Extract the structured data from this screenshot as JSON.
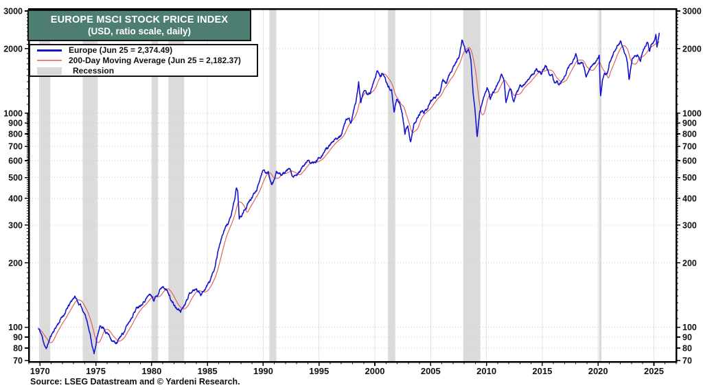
{
  "title": {
    "line1": "EUROPE MSCI STOCK PRICE INDEX",
    "line2": "(USD, ratio scale, daily)"
  },
  "legend": {
    "items": [
      {
        "label": "Europe (Jun 25 = 2,374.49)",
        "swatch": "line",
        "color": "#1414cc",
        "weight": 3
      },
      {
        "label": "200-Day Moving Average (Jun 25 = 2,182.37)",
        "swatch": "line",
        "color": "#ef8484",
        "weight": 2
      },
      {
        "label": "Recession",
        "swatch": "box",
        "color": "#d9d9d9",
        "weight": 0
      }
    ]
  },
  "source_note": "Source: LSEG Datastream and © Yardeni Research.",
  "colors": {
    "europe_line": "#1414cc",
    "ma_line": "#dd5555",
    "recession_band": "#dbdbdb",
    "frame": "#000000",
    "gridline_h": "#c9c9c9",
    "gridline_v": "#e3e3e3",
    "title_bg": "#4e7e72"
  },
  "chart_data": {
    "type": "line",
    "title": "EUROPE MSCI STOCK PRICE INDEX",
    "subtitle": "(USD, ratio scale, daily)",
    "x_axis": {
      "range": [
        1969,
        2027
      ],
      "major_ticks": [
        1970,
        1975,
        1980,
        1985,
        1990,
        1995,
        2000,
        2005,
        2010,
        2015,
        2020,
        2025
      ],
      "minor_tick_step_years": 1
    },
    "y_axis": {
      "scale": "log",
      "range": [
        69,
        3067
      ],
      "labeled_ticks": [
        3000,
        2000,
        1000,
        900,
        800,
        700,
        600,
        500,
        400,
        300,
        200,
        100,
        90,
        80,
        70
      ],
      "gridline_values": [
        2000,
        1000,
        900,
        800,
        700,
        600,
        500,
        400,
        300,
        200,
        100,
        90,
        80
      ]
    },
    "legend_position": "top-left",
    "recessions": [
      [
        1969.92,
        1970.92
      ],
      [
        1973.83,
        1975.17
      ],
      [
        1980.0,
        1980.58
      ],
      [
        1981.5,
        1982.92
      ],
      [
        1990.55,
        1991.17
      ],
      [
        2001.17,
        2001.83
      ],
      [
        2007.92,
        2009.45
      ],
      [
        2020.08,
        2020.3
      ]
    ],
    "series": [
      {
        "name": "Europe",
        "color": "#1414cc",
        "value_jun_25": 2374.49,
        "points": [
          [
            1969.85,
            99
          ],
          [
            1970.1,
            93
          ],
          [
            1970.35,
            85
          ],
          [
            1970.55,
            79
          ],
          [
            1970.8,
            86
          ],
          [
            1971.05,
            93
          ],
          [
            1971.35,
            99
          ],
          [
            1971.65,
            105
          ],
          [
            1972.0,
            112
          ],
          [
            1972.4,
            121
          ],
          [
            1972.8,
            131
          ],
          [
            1973.1,
            140
          ],
          [
            1973.4,
            131
          ],
          [
            1973.7,
            124
          ],
          [
            1974.0,
            117
          ],
          [
            1974.3,
            104
          ],
          [
            1974.6,
            87
          ],
          [
            1974.85,
            75
          ],
          [
            1975.1,
            89
          ],
          [
            1975.35,
            99
          ],
          [
            1975.6,
            101
          ],
          [
            1975.9,
            96
          ],
          [
            1976.2,
            92
          ],
          [
            1976.6,
            86
          ],
          [
            1976.9,
            84
          ],
          [
            1977.2,
            90
          ],
          [
            1977.6,
            97
          ],
          [
            1978.0,
            106
          ],
          [
            1978.4,
            118
          ],
          [
            1978.8,
            126
          ],
          [
            1979.2,
            132
          ],
          [
            1979.6,
            139
          ],
          [
            1979.9,
            143
          ],
          [
            1980.2,
            134
          ],
          [
            1980.5,
            143
          ],
          [
            1980.8,
            153
          ],
          [
            1981.05,
            159
          ],
          [
            1981.4,
            148
          ],
          [
            1981.7,
            137
          ],
          [
            1982.0,
            127
          ],
          [
            1982.3,
            121
          ],
          [
            1982.6,
            119
          ],
          [
            1982.9,
            127
          ],
          [
            1983.2,
            139
          ],
          [
            1983.6,
            149
          ],
          [
            1984.0,
            151
          ],
          [
            1984.4,
            144
          ],
          [
            1984.8,
            153
          ],
          [
            1985.2,
            163
          ],
          [
            1985.6,
            186
          ],
          [
            1986.0,
            236
          ],
          [
            1986.4,
            276
          ],
          [
            1986.8,
            302
          ],
          [
            1987.2,
            342
          ],
          [
            1987.45,
            392
          ],
          [
            1987.6,
            448
          ],
          [
            1987.72,
            425
          ],
          [
            1987.85,
            320
          ],
          [
            1988.1,
            336
          ],
          [
            1988.5,
            366
          ],
          [
            1989.0,
            402
          ],
          [
            1989.4,
            442
          ],
          [
            1989.7,
            502
          ],
          [
            1989.95,
            548
          ],
          [
            1990.2,
            522
          ],
          [
            1990.45,
            538
          ],
          [
            1990.75,
            464
          ],
          [
            1991.0,
            492
          ],
          [
            1991.2,
            526
          ],
          [
            1991.5,
            512
          ],
          [
            1991.8,
            522
          ],
          [
            1992.1,
            528
          ],
          [
            1992.4,
            541
          ],
          [
            1992.7,
            494
          ],
          [
            1993.0,
            506
          ],
          [
            1993.4,
            547
          ],
          [
            1993.8,
            582
          ],
          [
            1994.1,
            606
          ],
          [
            1994.4,
            579
          ],
          [
            1994.7,
            591
          ],
          [
            1995.0,
            621
          ],
          [
            1995.4,
            662
          ],
          [
            1995.8,
            692
          ],
          [
            1996.2,
            722
          ],
          [
            1996.6,
            752
          ],
          [
            1997.0,
            812
          ],
          [
            1997.4,
            922
          ],
          [
            1997.7,
            962
          ],
          [
            1997.85,
            898
          ],
          [
            1998.1,
            1022
          ],
          [
            1998.3,
            1125
          ],
          [
            1998.55,
            1392
          ],
          [
            1998.75,
            1138
          ],
          [
            1999.0,
            1252
          ],
          [
            1999.3,
            1222
          ],
          [
            1999.6,
            1255
          ],
          [
            1999.9,
            1402
          ],
          [
            2000.18,
            1572
          ],
          [
            2000.45,
            1478
          ],
          [
            2000.7,
            1528
          ],
          [
            2000.95,
            1418
          ],
          [
            2001.2,
            1332
          ],
          [
            2001.5,
            1298
          ],
          [
            2001.72,
            1002
          ],
          [
            2001.95,
            1168
          ],
          [
            2002.2,
            1118
          ],
          [
            2002.45,
            998
          ],
          [
            2002.7,
            812
          ],
          [
            2002.95,
            878
          ],
          [
            2003.2,
            731
          ],
          [
            2003.5,
            878
          ],
          [
            2003.8,
            958
          ],
          [
            2004.1,
            1008
          ],
          [
            2004.4,
            998
          ],
          [
            2004.7,
            1058
          ],
          [
            2005.0,
            1138
          ],
          [
            2005.4,
            1158
          ],
          [
            2005.8,
            1258
          ],
          [
            2006.1,
            1398
          ],
          [
            2006.4,
            1388
          ],
          [
            2006.7,
            1498
          ],
          [
            2007.0,
            1618
          ],
          [
            2007.3,
            1748
          ],
          [
            2007.55,
            1848
          ],
          [
            2007.8,
            2178
          ],
          [
            2008.0,
            2058
          ],
          [
            2008.2,
            1878
          ],
          [
            2008.4,
            1988
          ],
          [
            2008.6,
            1788
          ],
          [
            2008.8,
            1258
          ],
          [
            2009.0,
            1002
          ],
          [
            2009.17,
            788
          ],
          [
            2009.4,
            1018
          ],
          [
            2009.6,
            1118
          ],
          [
            2009.8,
            1228
          ],
          [
            2010.05,
            1318
          ],
          [
            2010.35,
            1158
          ],
          [
            2010.6,
            1228
          ],
          [
            2010.9,
            1328
          ],
          [
            2011.1,
            1438
          ],
          [
            2011.35,
            1528
          ],
          [
            2011.6,
            1378
          ],
          [
            2011.75,
            1108
          ],
          [
            2012.0,
            1248
          ],
          [
            2012.2,
            1298
          ],
          [
            2012.45,
            1128
          ],
          [
            2012.7,
            1248
          ],
          [
            2013.0,
            1338
          ],
          [
            2013.3,
            1318
          ],
          [
            2013.6,
            1398
          ],
          [
            2013.9,
            1498
          ],
          [
            2014.2,
            1548
          ],
          [
            2014.45,
            1618
          ],
          [
            2014.7,
            1558
          ],
          [
            2014.95,
            1528
          ],
          [
            2015.3,
            1678
          ],
          [
            2015.6,
            1548
          ],
          [
            2015.9,
            1498
          ],
          [
            2016.1,
            1348
          ],
          [
            2016.35,
            1428
          ],
          [
            2016.5,
            1338
          ],
          [
            2016.8,
            1418
          ],
          [
            2017.1,
            1498
          ],
          [
            2017.4,
            1638
          ],
          [
            2017.7,
            1718
          ],
          [
            2018.03,
            1868
          ],
          [
            2018.2,
            1718
          ],
          [
            2018.5,
            1778
          ],
          [
            2018.75,
            1648
          ],
          [
            2018.95,
            1498
          ],
          [
            2019.2,
            1618
          ],
          [
            2019.5,
            1678
          ],
          [
            2019.8,
            1738
          ],
          [
            2020.1,
            1838
          ],
          [
            2020.22,
            1188
          ],
          [
            2020.4,
            1448
          ],
          [
            2020.6,
            1508
          ],
          [
            2020.8,
            1538
          ],
          [
            2021.0,
            1718
          ],
          [
            2021.3,
            1848
          ],
          [
            2021.6,
            1978
          ],
          [
            2021.9,
            2078
          ],
          [
            2022.05,
            2158
          ],
          [
            2022.3,
            1938
          ],
          [
            2022.5,
            1798
          ],
          [
            2022.62,
            1698
          ],
          [
            2022.78,
            1428
          ],
          [
            2023.05,
            1818
          ],
          [
            2023.3,
            1848
          ],
          [
            2023.55,
            1898
          ],
          [
            2023.8,
            1778
          ],
          [
            2024.05,
            1958
          ],
          [
            2024.3,
            2098
          ],
          [
            2024.45,
            2138
          ],
          [
            2024.6,
            1948
          ],
          [
            2024.8,
            2078
          ],
          [
            2025.0,
            2148
          ],
          [
            2025.18,
            2358
          ],
          [
            2025.28,
            2018
          ],
          [
            2025.38,
            2218
          ],
          [
            2025.48,
            2374.49
          ]
        ]
      },
      {
        "name": "200-Day Moving Average",
        "color": "#dd5555",
        "value_jun_25": 2182.37,
        "derived_from": "Europe",
        "method": "trailing 200-trading-day moving average"
      }
    ],
    "render": {
      "sample_step_years": 0.025,
      "noise_pct": 1.0,
      "seed": 11,
      "ma_window_years": 0.79
    }
  }
}
